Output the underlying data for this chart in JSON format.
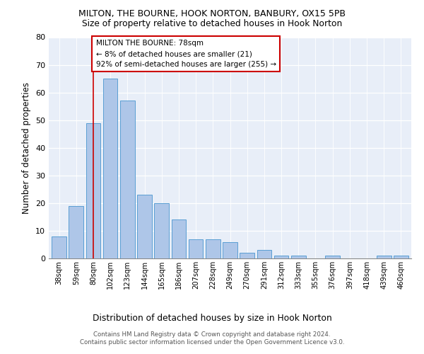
{
  "title1": "MILTON, THE BOURNE, HOOK NORTON, BANBURY, OX15 5PB",
  "title2": "Size of property relative to detached houses in Hook Norton",
  "xlabel": "Distribution of detached houses by size in Hook Norton",
  "ylabel": "Number of detached properties",
  "categories": [
    "38sqm",
    "59sqm",
    "80sqm",
    "102sqm",
    "123sqm",
    "144sqm",
    "165sqm",
    "186sqm",
    "207sqm",
    "228sqm",
    "249sqm",
    "270sqm",
    "291sqm",
    "312sqm",
    "333sqm",
    "355sqm",
    "376sqm",
    "397sqm",
    "418sqm",
    "439sqm",
    "460sqm"
  ],
  "values": [
    8,
    19,
    49,
    65,
    57,
    23,
    20,
    14,
    7,
    7,
    6,
    2,
    3,
    1,
    1,
    0,
    1,
    0,
    0,
    1,
    1
  ],
  "bar_color": "#aec6e8",
  "bar_edge_color": "#5a9fd4",
  "vline_x_idx": 2,
  "vline_color": "#cc0000",
  "annotation_text": "MILTON THE BOURNE: 78sqm\n← 8% of detached houses are smaller (21)\n92% of semi-detached houses are larger (255) →",
  "annotation_box_color": "#ffffff",
  "annotation_box_edge": "#cc0000",
  "ylim": [
    0,
    80
  ],
  "yticks": [
    0,
    10,
    20,
    30,
    40,
    50,
    60,
    70,
    80
  ],
  "footer": "Contains HM Land Registry data © Crown copyright and database right 2024.\nContains public sector information licensed under the Open Government Licence v3.0.",
  "bg_color": "#e8eef8"
}
